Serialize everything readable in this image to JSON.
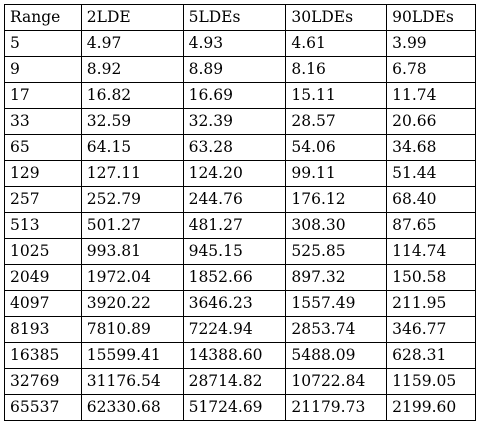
{
  "table": {
    "headers": [
      "Range",
      "2LDE",
      "5LDEs",
      "30LDEs",
      "90LDEs"
    ],
    "rows": [
      [
        "5",
        "4.97",
        "4.93",
        "4.61",
        "3.99"
      ],
      [
        "9",
        "8.92",
        "8.89",
        "8.16",
        "6.78"
      ],
      [
        "17",
        "16.82",
        "16.69",
        "15.11",
        "11.74"
      ],
      [
        "33",
        "32.59",
        "32.39",
        "28.57",
        "20.66"
      ],
      [
        "65",
        "64.15",
        "63.28",
        "54.06",
        "34.68"
      ],
      [
        "129",
        "127.11",
        "124.20",
        "99.11",
        "51.44"
      ],
      [
        "257",
        "252.79",
        "244.76",
        "176.12",
        "68.40"
      ],
      [
        "513",
        "501.27",
        "481.27",
        "308.30",
        "87.65"
      ],
      [
        "1025",
        "993.81",
        "945.15",
        "525.85",
        "114.74"
      ],
      [
        "2049",
        "1972.04",
        "1852.66",
        "897.32",
        "150.58"
      ],
      [
        "4097",
        "3920.22",
        "3646.23",
        "1557.49",
        "211.95"
      ],
      [
        "8193",
        "7810.89",
        "7224.94",
        "2853.74",
        "346.77"
      ],
      [
        "16385",
        "15599.41",
        "14388.60",
        "5488.09",
        "628.31"
      ],
      [
        "32769",
        "31176.54",
        "28714.82",
        "10722.84",
        "1159.05"
      ],
      [
        "65537",
        "62330.68",
        "51724.69",
        "21179.73",
        "2199.60"
      ]
    ]
  }
}
